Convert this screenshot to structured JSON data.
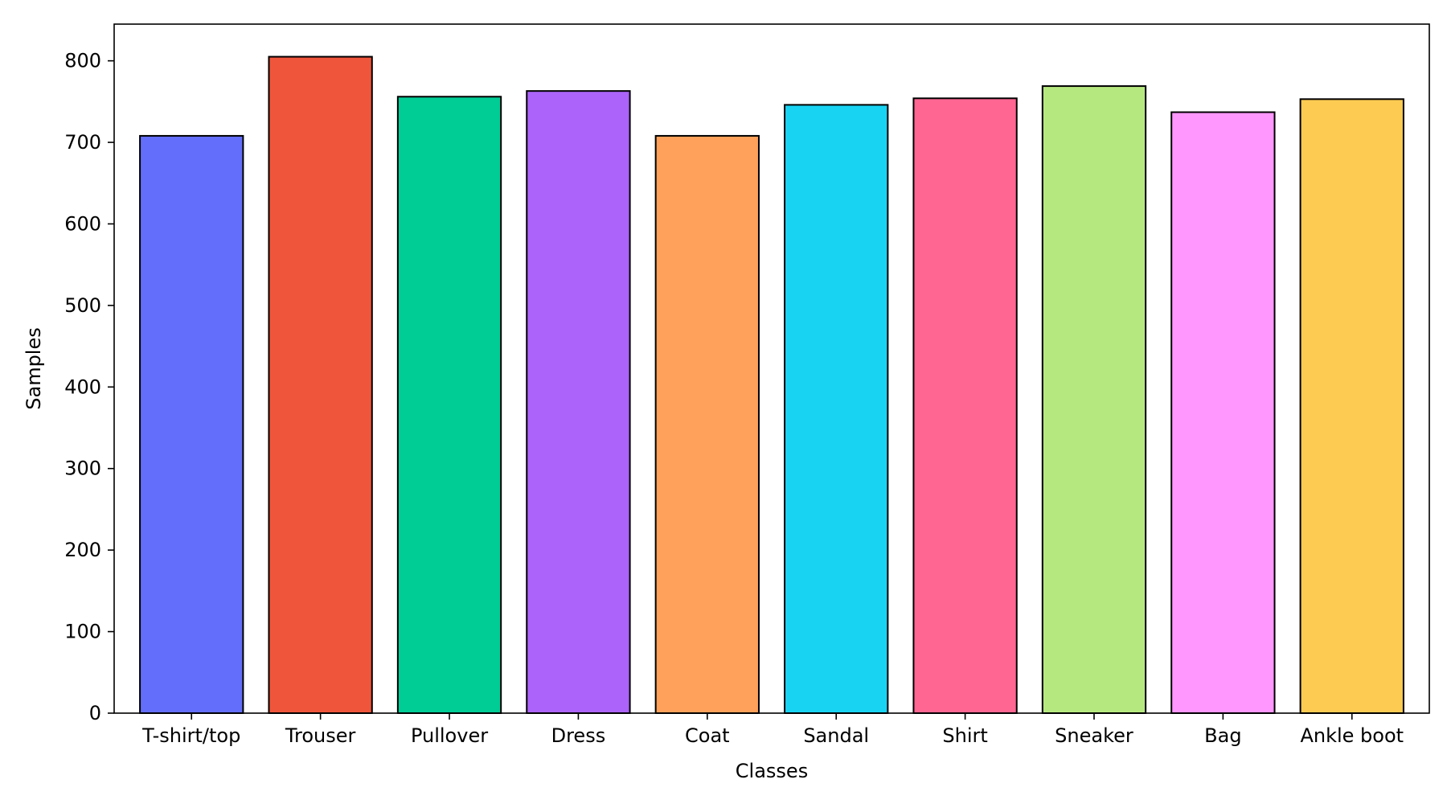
{
  "chart_data": {
    "type": "bar",
    "title": "",
    "xlabel": "Classes",
    "ylabel": "Samples",
    "categories": [
      "T-shirt/top",
      "Trouser",
      "Pullover",
      "Dress",
      "Coat",
      "Sandal",
      "Shirt",
      "Sneaker",
      "Bag",
      "Ankle boot"
    ],
    "values": [
      708,
      805,
      756,
      763,
      708,
      746,
      754,
      769,
      737,
      753
    ],
    "colors": [
      "#636efa",
      "#ef553b",
      "#00cc96",
      "#ab63fa",
      "#ffa15a",
      "#19d3f3",
      "#ff6692",
      "#b6e880",
      "#ff97ff",
      "#fecb52"
    ],
    "bar_edge_color": "#000000",
    "ylim": [
      0,
      845
    ],
    "yticks": [
      0,
      100,
      200,
      300,
      400,
      500,
      600,
      700,
      800
    ],
    "grid": false,
    "legend": "none"
  }
}
